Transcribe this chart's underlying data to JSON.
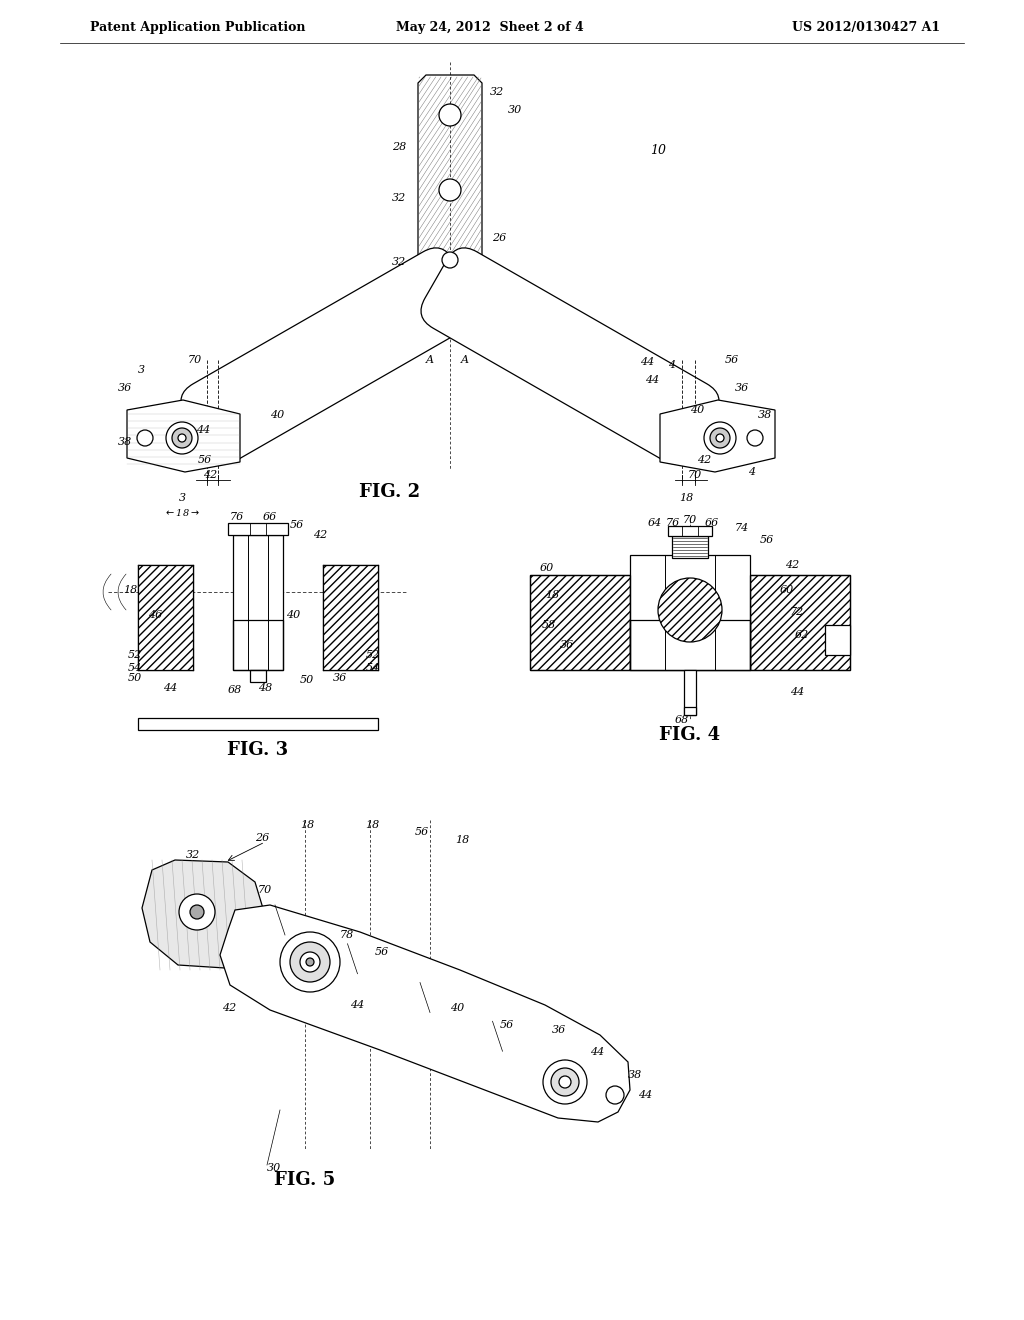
{
  "background_color": "#ffffff",
  "header_left": "Patent Application Publication",
  "header_center": "May 24, 2012  Sheet 2 of 4",
  "header_right": "US 2012/0130427 A1",
  "fig2_label": "FIG. 2",
  "fig3_label": "FIG. 3",
  "fig4_label": "FIG. 4",
  "fig5_label": "FIG. 5",
  "line_color": "#000000",
  "font_size_header": 9,
  "font_size_label": 12,
  "font_size_ref": 8
}
